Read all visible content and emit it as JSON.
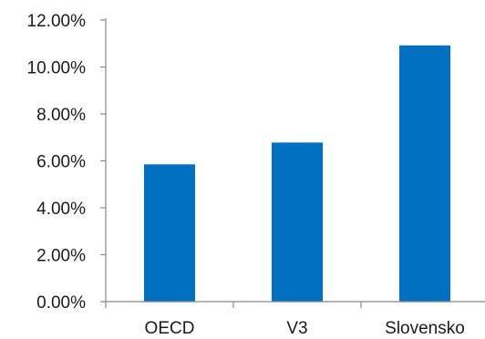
{
  "chart_data": {
    "type": "bar",
    "title": "",
    "xlabel": "",
    "ylabel": "",
    "categories": [
      "OECD",
      "V3",
      "Slovensko"
    ],
    "values": [
      5.85,
      6.78,
      10.92
    ],
    "ylim": [
      0,
      12
    ],
    "y_ticks": [
      0,
      2,
      4,
      6,
      8,
      10,
      12
    ],
    "y_tick_labels": [
      "0.00%",
      "2.00%",
      "4.00%",
      "6.00%",
      "8.00%",
      "10.00%",
      "12.00%"
    ],
    "grid": false,
    "legend": "none",
    "bar_color": "#0070C0",
    "axis_color": "#888888"
  }
}
